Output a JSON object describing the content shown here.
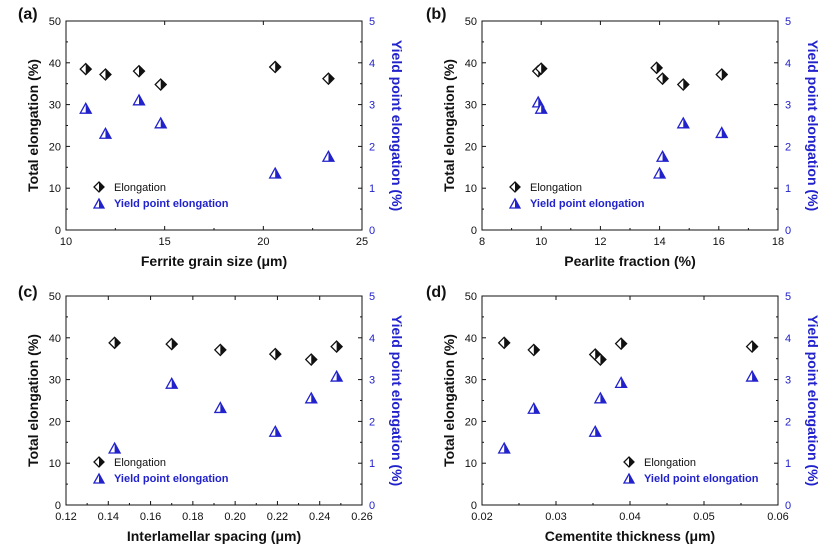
{
  "colors": {
    "elongation": "#111111",
    "yield": "#2222cc",
    "axis": "#111111"
  },
  "chart_data": [
    {
      "type": "scatter",
      "panel_label": "(a)",
      "xlabel": "Ferrite grain size (μm)",
      "ylabel": "Total elongation (%)",
      "y2label": "Yield point elongation (%)",
      "xlim": [
        10,
        25
      ],
      "xticks": [
        10,
        15,
        20,
        25
      ],
      "xtick_labels": [
        "10",
        "15",
        "20",
        "25"
      ],
      "ylim": [
        0,
        50
      ],
      "yticks": [
        0,
        10,
        20,
        30,
        40,
        50
      ],
      "y2lim": [
        0,
        5
      ],
      "y2ticks": [
        0,
        1,
        2,
        3,
        4,
        5
      ],
      "grid": false,
      "legend": "bottom-left",
      "series": [
        {
          "name": "Elongation",
          "axis": "left",
          "marker": "diamond",
          "x": [
            11.0,
            12.0,
            13.7,
            14.8,
            20.6,
            23.3
          ],
          "y": [
            38.5,
            37.2,
            38.0,
            34.8,
            39.0,
            36.2
          ]
        },
        {
          "name": "Yield point elongation",
          "axis": "right",
          "marker": "triangle",
          "x": [
            11.0,
            12.0,
            13.7,
            14.8,
            20.6,
            23.3
          ],
          "y": [
            2.9,
            2.3,
            3.1,
            2.55,
            1.35,
            1.75
          ]
        }
      ]
    },
    {
      "type": "scatter",
      "panel_label": "(b)",
      "xlabel": "Pearlite fraction (%)",
      "ylabel": "Total elongation (%)",
      "y2label": "Yield point elongation (%)",
      "xlim": [
        8,
        18
      ],
      "xticks": [
        8,
        10,
        12,
        14,
        16,
        18
      ],
      "xtick_labels": [
        "8",
        "10",
        "12",
        "14",
        "16",
        "18"
      ],
      "ylim": [
        0,
        50
      ],
      "yticks": [
        0,
        10,
        20,
        30,
        40,
        50
      ],
      "y2lim": [
        0,
        5
      ],
      "y2ticks": [
        0,
        1,
        2,
        3,
        4,
        5
      ],
      "grid": false,
      "legend": "bottom-left",
      "series": [
        {
          "name": "Elongation",
          "axis": "left",
          "marker": "diamond",
          "x": [
            9.9,
            10.0,
            13.9,
            14.1,
            14.8,
            16.1
          ],
          "y": [
            38.0,
            38.6,
            38.8,
            36.2,
            34.8,
            37.2
          ]
        },
        {
          "name": "Yield point elongation",
          "axis": "right",
          "marker": "triangle",
          "x": [
            9.9,
            10.0,
            14.0,
            14.1,
            14.8,
            16.1
          ],
          "y": [
            3.05,
            2.9,
            1.35,
            1.75,
            2.55,
            2.32
          ]
        }
      ]
    },
    {
      "type": "scatter",
      "panel_label": "(c)",
      "xlabel": "Interlamellar spacing (μm)",
      "ylabel": "Total elongation (%)",
      "y2label": "Yield point elongation (%)",
      "xlim": [
        0.12,
        0.26
      ],
      "xticks": [
        0.12,
        0.14,
        0.16,
        0.18,
        0.2,
        0.22,
        0.24,
        0.26
      ],
      "xtick_labels": [
        "0.12",
        "0.14",
        "0.16",
        "0.18",
        "0.20",
        "0.22",
        "0.24",
        "0.26"
      ],
      "ylim": [
        0,
        50
      ],
      "yticks": [
        0,
        10,
        20,
        30,
        40,
        50
      ],
      "y2lim": [
        0,
        5
      ],
      "y2ticks": [
        0,
        1,
        2,
        3,
        4,
        5
      ],
      "grid": false,
      "legend": "bottom-left",
      "series": [
        {
          "name": "Elongation",
          "axis": "left",
          "marker": "diamond",
          "x": [
            0.143,
            0.17,
            0.193,
            0.219,
            0.236,
            0.248
          ],
          "y": [
            38.8,
            38.5,
            37.1,
            36.1,
            34.8,
            37.9
          ]
        },
        {
          "name": "Yield point elongation",
          "axis": "right",
          "marker": "triangle",
          "x": [
            0.143,
            0.17,
            0.193,
            0.219,
            0.236,
            0.248
          ],
          "y": [
            1.35,
            2.9,
            2.32,
            1.75,
            2.55,
            3.07
          ]
        }
      ]
    },
    {
      "type": "scatter",
      "panel_label": "(d)",
      "xlabel": "Cementite thickness (μm)",
      "ylabel": "Total elongation (%)",
      "y2label": "Yield point elongation (%)",
      "xlim": [
        0.02,
        0.06
      ],
      "xticks": [
        0.02,
        0.03,
        0.04,
        0.05,
        0.06
      ],
      "xtick_labels": [
        "0.02",
        "0.03",
        "0.04",
        "0.05",
        "0.06"
      ],
      "ylim": [
        0,
        50
      ],
      "yticks": [
        0,
        10,
        20,
        30,
        40,
        50
      ],
      "y2lim": [
        0,
        5
      ],
      "y2ticks": [
        0,
        1,
        2,
        3,
        4,
        5
      ],
      "grid": false,
      "legend": "bottom-right",
      "series": [
        {
          "name": "Elongation",
          "axis": "left",
          "marker": "diamond",
          "x": [
            0.023,
            0.027,
            0.0353,
            0.036,
            0.0388,
            0.0565
          ],
          "y": [
            38.8,
            37.1,
            36.0,
            34.8,
            38.6,
            37.9
          ]
        },
        {
          "name": "Yield point elongation",
          "axis": "right",
          "marker": "triangle",
          "x": [
            0.023,
            0.027,
            0.0353,
            0.036,
            0.0388,
            0.0565
          ],
          "y": [
            1.35,
            2.3,
            1.75,
            2.55,
            2.92,
            3.07
          ]
        }
      ]
    }
  ]
}
